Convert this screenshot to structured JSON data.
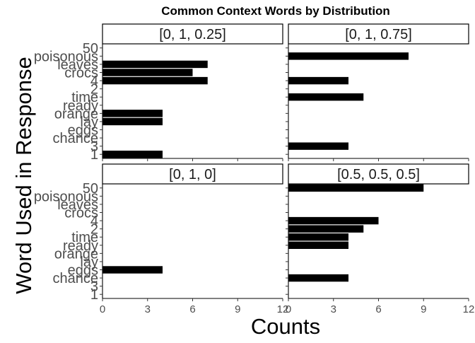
{
  "chart_data": {
    "type": "bar",
    "orientation": "horizontal",
    "title": "Common Context Words by Distribution",
    "xlabel": "Counts",
    "ylabel": "Word Used in Response",
    "xlim": [
      0,
      12
    ],
    "x_ticks": [
      "0",
      "3",
      "6",
      "9",
      "12"
    ],
    "grid": false,
    "legend": "none",
    "bar_color": "#000000",
    "categories": [
      "50",
      "poisonous",
      "leaves",
      "crocs",
      "4",
      "2",
      "time",
      "ready",
      "orange",
      "lay",
      "eggs",
      "chance",
      "3",
      "1"
    ],
    "facets": [
      {
        "label": "[0, 1, 0.25]",
        "values": [
          0,
          0,
          7,
          6,
          7,
          0,
          0,
          0,
          4,
          4,
          0,
          0,
          0,
          4
        ]
      },
      {
        "label": "[0, 1, 0.75]",
        "values": [
          0,
          8,
          0,
          0,
          4,
          0,
          5,
          0,
          0,
          0,
          0,
          0,
          4,
          0
        ]
      },
      {
        "label": "[0, 1, 0]",
        "values": [
          0,
          0,
          0,
          0,
          0,
          0,
          0,
          0,
          0,
          0,
          4,
          0,
          0,
          0
        ]
      },
      {
        "label": "[0.5, 0.5, 0.5]",
        "values": [
          9,
          0,
          0,
          0,
          6,
          5,
          4,
          4,
          0,
          0,
          0,
          4,
          0,
          0
        ]
      }
    ]
  }
}
